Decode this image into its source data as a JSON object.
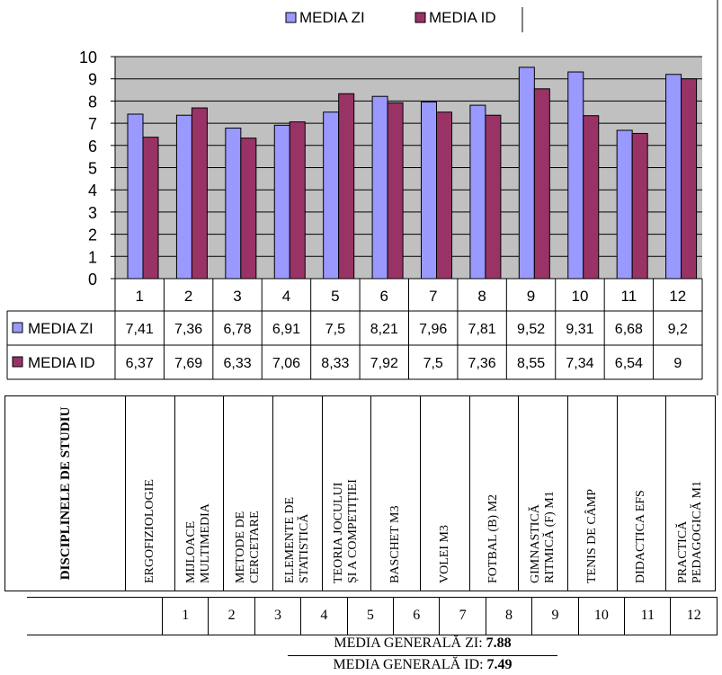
{
  "legend": {
    "series1": "MEDIA ZI",
    "series2": "MEDIA ID"
  },
  "colors": {
    "zi": "#9999ff",
    "id": "#993366",
    "plot_bg": "#c0c0c0"
  },
  "chart_data": {
    "type": "bar",
    "categories": [
      "1",
      "2",
      "3",
      "4",
      "5",
      "6",
      "7",
      "8",
      "9",
      "10",
      "11",
      "12"
    ],
    "ylim": [
      0,
      10
    ],
    "yticks": [
      "0",
      "1",
      "2",
      "3",
      "4",
      "5",
      "6",
      "7",
      "8",
      "9",
      "10"
    ],
    "series": [
      {
        "name": "MEDIA ZI",
        "values": [
          7.41,
          7.36,
          6.78,
          6.91,
          7.5,
          8.21,
          7.96,
          7.81,
          9.52,
          9.31,
          6.68,
          9.2
        ],
        "labels": [
          "7,41",
          "7,36",
          "6,78",
          "6,91",
          "7,5",
          "8,21",
          "7,96",
          "7,81",
          "9,52",
          "9,31",
          "6,68",
          "9,2"
        ]
      },
      {
        "name": "MEDIA ID",
        "values": [
          6.37,
          7.69,
          6.33,
          7.06,
          8.33,
          7.92,
          7.5,
          7.36,
          8.55,
          7.34,
          6.54,
          9
        ],
        "labels": [
          "6,37",
          "7,69",
          "6,33",
          "7,06",
          "8,33",
          "7,92",
          "7,5",
          "7,36",
          "8,55",
          "7,34",
          "6,54",
          "9"
        ]
      }
    ],
    "grid": true,
    "legend_position": "top"
  },
  "table": {
    "header": "DISCIPLINELE DE STUDIU",
    "disciplines": [
      [
        "ERGOFIZIOLOGIE"
      ],
      [
        "MIJLOACE",
        "MULTIMEDIA"
      ],
      [
        "METODE DE",
        "CERCETARE"
      ],
      [
        "ELEMENTE DE",
        "STATISTICĂ"
      ],
      [
        "TEORIA JOCULUI",
        "ȘI A COMPETIȚIEI"
      ],
      [
        "BASCHET  M3"
      ],
      [
        "VOLEI  M3"
      ],
      [
        "FOTBAL (B)  M2"
      ],
      [
        "GIMNASTICĂ",
        "RITMICĂ (F)  M1"
      ],
      [
        "TENIS DE CÂMP"
      ],
      [
        "DIDACTICA EFS"
      ],
      [
        "PRACTICĂ",
        "PEDAGOGICĂ  M1"
      ]
    ],
    "numbers": [
      "1",
      "2",
      "3",
      "4",
      "5",
      "6",
      "7",
      "8",
      "9",
      "10",
      "11",
      "12"
    ]
  },
  "summary": {
    "zi_label": "MEDIA GENERALĂ ZI: ",
    "zi_value": "7.88",
    "id_label": "MEDIA GENERALĂ ID: ",
    "id_value": "7.49"
  }
}
